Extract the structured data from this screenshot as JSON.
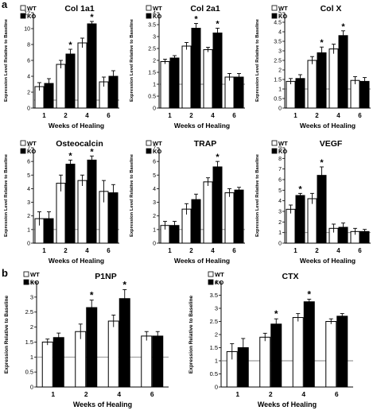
{
  "panel_labels": {
    "a": "a",
    "b": "b"
  },
  "legend": {
    "wt": "WT",
    "ko": "KO"
  },
  "colors": {
    "wt": "#ffffff",
    "ko": "#000000",
    "baseline": "#808080"
  },
  "chart_data": [
    {
      "type": "bar",
      "title": "Col 1a1",
      "xlabel": "Weeks of Healing",
      "ylabel": "Expression Level Relative to Baseline",
      "categories": [
        "1",
        "2",
        "4",
        "6"
      ],
      "ylim": [
        0,
        12
      ],
      "yticks": [
        "0",
        "2",
        "4",
        "6",
        "8",
        "10",
        "12"
      ],
      "baseline": 1,
      "series": [
        {
          "name": "WT",
          "values": [
            2.7,
            5.5,
            8.2,
            3.3
          ],
          "errors": [
            0.5,
            0.5,
            0.6,
            0.6
          ]
        },
        {
          "name": "KO",
          "values": [
            3.1,
            6.8,
            10.6,
            4.0
          ],
          "errors": [
            0.6,
            0.6,
            0.3,
            0.7
          ]
        }
      ],
      "significant": [
        false,
        true,
        true,
        false
      ]
    },
    {
      "type": "bar",
      "title": "Col 2a1",
      "xlabel": "Weeks of Healing",
      "ylabel": "Expression Level Relative to Baseline",
      "categories": [
        "1",
        "2",
        "4",
        "6"
      ],
      "ylim": [
        0,
        4
      ],
      "yticks": [
        "0",
        "0.5",
        "1",
        "1.5",
        "2",
        "2.5",
        "3",
        "3.5",
        "4"
      ],
      "baseline": 1,
      "series": [
        {
          "name": "WT",
          "values": [
            1.95,
            2.6,
            2.45,
            1.3
          ],
          "errors": [
            0.1,
            0.15,
            0.1,
            0.15
          ]
        },
        {
          "name": "KO",
          "values": [
            2.1,
            3.35,
            3.15,
            1.3
          ],
          "errors": [
            0.1,
            0.2,
            0.2,
            0.15
          ]
        }
      ],
      "significant": [
        false,
        true,
        true,
        false
      ]
    },
    {
      "type": "bar",
      "title": "Col X",
      "xlabel": "Weeks of Healing",
      "ylabel": "Expression Level Relative to Baseline",
      "categories": [
        "1",
        "2",
        "4",
        "6"
      ],
      "ylim": [
        0,
        5
      ],
      "yticks": [
        "0",
        "0.5",
        "1",
        "1.5",
        "2",
        "2.5",
        "3",
        "3.5",
        "4",
        "4.5",
        "5"
      ],
      "baseline": 1,
      "series": [
        {
          "name": "WT",
          "values": [
            1.4,
            2.5,
            3.1,
            1.45
          ],
          "errors": [
            0.15,
            0.2,
            0.25,
            0.2
          ]
        },
        {
          "name": "KO",
          "values": [
            1.55,
            2.9,
            3.8,
            1.4
          ],
          "errors": [
            0.2,
            0.3,
            0.25,
            0.2
          ]
        }
      ],
      "significant": [
        false,
        true,
        true,
        false
      ]
    },
    {
      "type": "bar",
      "title": "Osteocalcin",
      "xlabel": "Weeks of Healing",
      "ylabel": "Expression Level Relative to Baseline",
      "categories": [
        "1",
        "2",
        "4",
        "6"
      ],
      "ylim": [
        0,
        7
      ],
      "yticks": [
        "0",
        "1",
        "2",
        "3",
        "4",
        "5",
        "6",
        "7"
      ],
      "baseline": 1,
      "series": [
        {
          "name": "WT",
          "values": [
            1.8,
            4.4,
            4.6,
            3.8
          ],
          "errors": [
            0.5,
            0.6,
            0.4,
            0.8
          ]
        },
        {
          "name": "KO",
          "values": [
            1.8,
            5.8,
            6.1,
            3.7
          ],
          "errors": [
            0.5,
            0.3,
            0.3,
            0.6
          ]
        }
      ],
      "significant": [
        false,
        true,
        true,
        false
      ]
    },
    {
      "type": "bar",
      "title": "TRAP",
      "xlabel": "Weeks of Healing",
      "ylabel": "Expression Level Relative to Baseline",
      "categories": [
        "1",
        "2",
        "4",
        "6"
      ],
      "ylim": [
        0,
        7
      ],
      "yticks": [
        "0",
        "1",
        "2",
        "3",
        "4",
        "5",
        "6",
        "7"
      ],
      "baseline": 1,
      "series": [
        {
          "name": "WT",
          "values": [
            1.3,
            2.5,
            4.5,
            3.7
          ],
          "errors": [
            0.3,
            0.4,
            0.3,
            0.3
          ]
        },
        {
          "name": "KO",
          "values": [
            1.3,
            3.2,
            5.6,
            3.9
          ],
          "errors": [
            0.3,
            0.4,
            0.4,
            0.2
          ]
        }
      ],
      "significant": [
        false,
        false,
        true,
        false
      ]
    },
    {
      "type": "bar",
      "title": "VEGF",
      "xlabel": "Weeks of Healing",
      "ylabel": "Expression Level Relative to Baseline",
      "categories": [
        "1",
        "2",
        "4",
        "6"
      ],
      "ylim": [
        0,
        9
      ],
      "yticks": [
        "0",
        "1",
        "2",
        "3",
        "4",
        "5",
        "6",
        "7",
        "8",
        "9"
      ],
      "baseline": 1,
      "series": [
        {
          "name": "WT",
          "values": [
            3.2,
            4.2,
            1.4,
            1.1
          ],
          "errors": [
            0.4,
            0.5,
            0.4,
            0.3
          ]
        },
        {
          "name": "KO",
          "values": [
            4.5,
            6.4,
            1.5,
            1.1
          ],
          "errors": [
            0.2,
            0.8,
            0.4,
            0.2
          ]
        }
      ],
      "significant": [
        true,
        true,
        false,
        false
      ]
    },
    {
      "type": "bar",
      "title": "P1NP",
      "xlabel": "Weeks of  Healing",
      "ylabel": "Expression Relative to Baseline",
      "categories": [
        "1",
        "2",
        "4",
        "6"
      ],
      "ylim": [
        0,
        3.5
      ],
      "yticks": [
        "0",
        "0.5",
        "1",
        "1.5",
        "2",
        "2.5",
        "3",
        "3.5"
      ],
      "baseline": 1,
      "series": [
        {
          "name": "WT",
          "values": [
            1.5,
            1.85,
            2.2,
            1.7
          ],
          "errors": [
            0.1,
            0.25,
            0.2,
            0.15
          ]
        },
        {
          "name": "KO",
          "values": [
            1.65,
            2.65,
            2.95,
            1.7
          ],
          "errors": [
            0.15,
            0.25,
            0.3,
            0.15
          ]
        }
      ],
      "significant": [
        false,
        true,
        true,
        false
      ]
    },
    {
      "type": "bar",
      "title": "CTX",
      "xlabel": "Weeks of Healing",
      "ylabel": "Expression Relative to Baseline",
      "categories": [
        "1",
        "2",
        "4",
        "6"
      ],
      "ylim": [
        0,
        4
      ],
      "yticks": [
        "0",
        "0.5",
        "1",
        "1.5",
        "2",
        "2.5",
        "3",
        "3.5",
        "4"
      ],
      "baseline": 1,
      "series": [
        {
          "name": "WT",
          "values": [
            1.35,
            1.9,
            2.65,
            2.5
          ],
          "errors": [
            0.3,
            0.15,
            0.15,
            0.1
          ]
        },
        {
          "name": "KO",
          "values": [
            1.5,
            2.4,
            3.25,
            2.7
          ],
          "errors": [
            0.35,
            0.2,
            0.1,
            0.1
          ]
        }
      ],
      "significant": [
        false,
        true,
        true,
        false
      ]
    }
  ]
}
